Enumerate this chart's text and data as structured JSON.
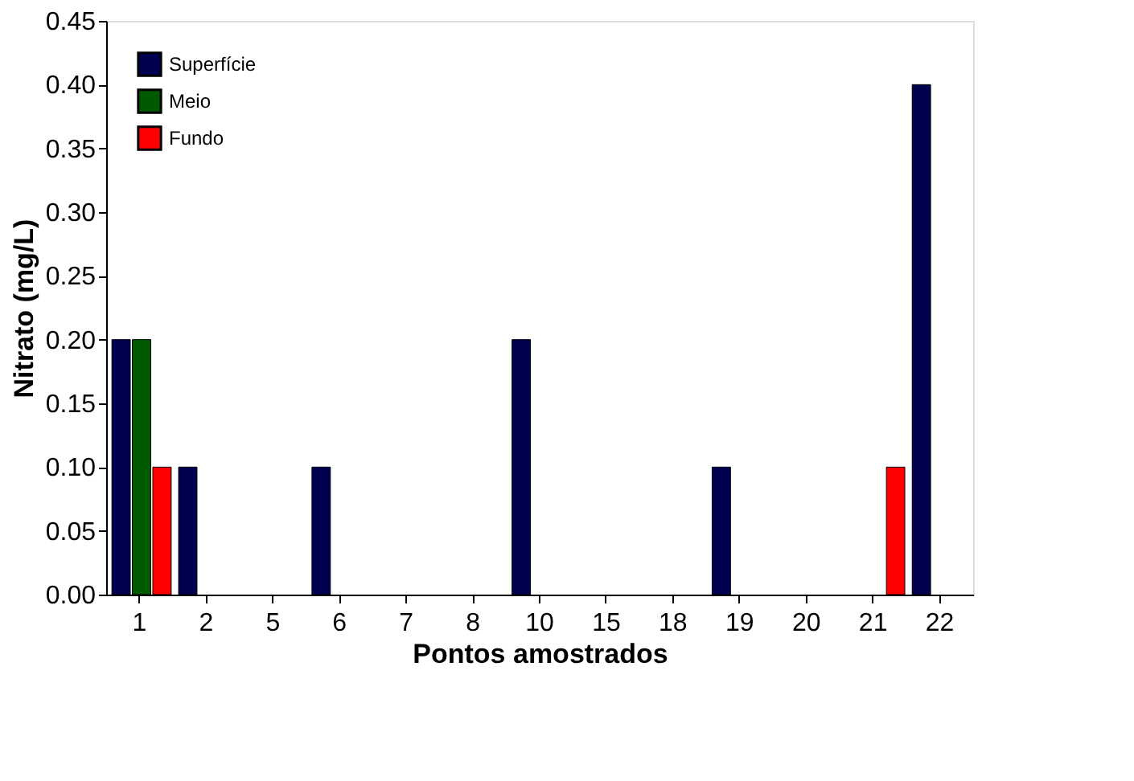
{
  "chart_data": {
    "type": "bar",
    "xlabel": "Pontos amostrados",
    "ylabel": "Nitrato (mg/L)",
    "categories": [
      "1",
      "2",
      "5",
      "6",
      "7",
      "8",
      "10",
      "15",
      "18",
      "19",
      "20",
      "21",
      "22"
    ],
    "series": [
      {
        "name": "Superfície",
        "color": "#000050",
        "values": [
          0.2,
          0.1,
          0,
          0.1,
          0,
          0,
          0.2,
          0,
          0,
          0.1,
          0,
          0,
          0.4
        ]
      },
      {
        "name": "Meio",
        "color": "#005a00",
        "values": [
          0.2,
          0,
          0,
          0,
          0,
          0,
          0,
          0,
          0,
          0,
          0,
          0,
          0
        ]
      },
      {
        "name": "Fundo",
        "color": "#ff0000",
        "values": [
          0.1,
          0,
          0,
          0,
          0,
          0,
          0,
          0,
          0,
          0,
          0,
          0.1,
          0
        ]
      }
    ],
    "ylim": [
      0,
      0.45
    ],
    "yticks": [
      {
        "value": 0,
        "label": "0.00"
      },
      {
        "value": 0.05,
        "label": "0.05"
      },
      {
        "value": 0.1,
        "label": "0.10"
      },
      {
        "value": 0.15,
        "label": "0.15"
      },
      {
        "value": 0.2,
        "label": "0.20"
      },
      {
        "value": 0.25,
        "label": "0.25"
      },
      {
        "value": 0.3,
        "label": "0.30"
      },
      {
        "value": 0.35,
        "label": "0.35"
      },
      {
        "value": 0.4,
        "label": "0.40"
      },
      {
        "value": 0.45,
        "label": "0.45"
      }
    ],
    "grid": false,
    "legend": "top left"
  }
}
